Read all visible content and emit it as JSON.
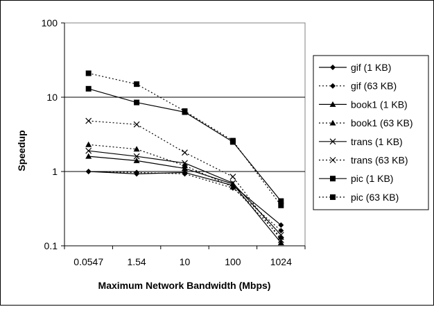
{
  "chart_data": {
    "type": "line",
    "title": "",
    "xlabel": "Maximum Network Bandwidth (Mbps)",
    "ylabel": "Speedup",
    "yscale": "log",
    "ylim": [
      0.1,
      100
    ],
    "y_ticks": [
      "0.1",
      "1",
      "10",
      "100"
    ],
    "categories": [
      "0.0547",
      "1.54",
      "10",
      "100",
      "1024"
    ],
    "grid": "horizontal major gridlines at 1 and 10",
    "legend_position": "right",
    "series": [
      {
        "name": "gif (1 KB)",
        "marker": "diamond",
        "dash": "solid",
        "values": [
          1.0,
          0.93,
          0.97,
          0.65,
          0.19
        ]
      },
      {
        "name": "gif (63 KB)",
        "marker": "diamond",
        "dash": "dotted",
        "values": [
          1.0,
          0.97,
          0.93,
          0.6,
          0.16
        ]
      },
      {
        "name": "book1 (1 KB)",
        "marker": "triangle",
        "dash": "solid",
        "values": [
          1.6,
          1.4,
          1.1,
          0.68,
          0.11
        ]
      },
      {
        "name": "book1 (63 KB)",
        "marker": "triangle",
        "dash": "dotted",
        "values": [
          2.3,
          2.0,
          1.2,
          0.62,
          0.13
        ]
      },
      {
        "name": "trans (1 KB)",
        "marker": "x",
        "dash": "solid",
        "values": [
          1.9,
          1.6,
          1.3,
          0.7,
          0.14
        ]
      },
      {
        "name": "trans (63 KB)",
        "marker": "x",
        "dash": "dotted",
        "values": [
          4.8,
          4.3,
          1.8,
          0.85,
          0.12
        ]
      },
      {
        "name": "pic (1 KB)",
        "marker": "square",
        "dash": "solid",
        "values": [
          13,
          8.5,
          6.3,
          2.5,
          0.4
        ]
      },
      {
        "name": "pic (63 KB)",
        "marker": "square",
        "dash": "dotted",
        "values": [
          21,
          15,
          6.5,
          2.6,
          0.35
        ]
      }
    ]
  }
}
